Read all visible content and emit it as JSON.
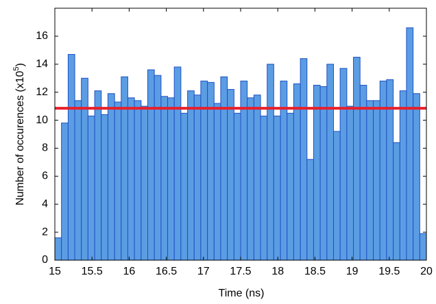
{
  "chart_data": {
    "type": "histogram",
    "x_label": "Time (ns)",
    "y_label_parts": [
      "Number of occurences (x10",
      "5",
      ")"
    ],
    "bins": [
      15,
      15.089,
      15.179,
      15.268,
      15.357,
      15.446,
      15.536,
      15.625,
      15.714,
      15.804,
      15.893,
      15.982,
      16.071,
      16.161,
      16.25,
      16.339,
      16.429,
      16.518,
      16.607,
      16.696,
      16.786,
      16.875,
      16.964,
      17.054,
      17.143,
      17.232,
      17.321,
      17.411,
      17.5,
      17.589,
      17.679,
      17.768,
      17.857,
      17.946,
      18.036,
      18.125,
      18.214,
      18.304,
      18.393,
      18.482,
      18.571,
      18.661,
      18.75,
      18.839,
      18.929,
      19.018,
      19.107,
      19.196,
      19.286,
      19.375,
      19.464,
      19.554,
      19.643,
      19.732,
      19.821,
      19.911,
      20
    ],
    "values": [
      1.6,
      9.8,
      14.7,
      11.4,
      13.0,
      10.3,
      12.1,
      10.4,
      11.9,
      11.3,
      13.1,
      11.6,
      11.4,
      11.0,
      13.6,
      13.2,
      11.7,
      11.6,
      13.8,
      10.5,
      12.1,
      11.8,
      12.8,
      12.7,
      11.2,
      13.1,
      12.2,
      10.5,
      12.8,
      11.6,
      11.8,
      10.3,
      14.0,
      10.3,
      12.8,
      10.5,
      12.6,
      14.4,
      7.2,
      12.5,
      12.4,
      14.0,
      9.2,
      13.7,
      11.0,
      14.5,
      12.5,
      11.4,
      11.4,
      12.8,
      12.9,
      8.4,
      12.1,
      16.6,
      11.9,
      1.9
    ],
    "color": "#5b9de3",
    "edge_color": "#1f4fc4",
    "hline": 10.85,
    "hline_color": "#e8202a",
    "xlim": [
      15,
      20
    ],
    "xticks": [
      15,
      15.5,
      16,
      16.5,
      17,
      17.5,
      18,
      18.5,
      19,
      19.5,
      20
    ],
    "ylim": [
      0,
      18
    ],
    "yticks": [
      0,
      2,
      4,
      6,
      8,
      10,
      12,
      14,
      16
    ]
  }
}
